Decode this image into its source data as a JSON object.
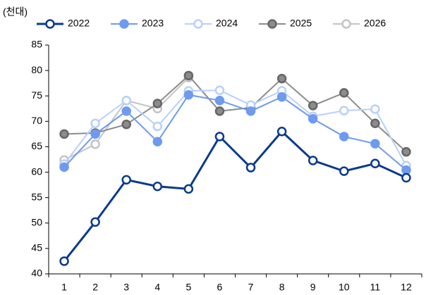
{
  "chart_data": {
    "type": "line",
    "unit_label": "(천대)",
    "categories": [
      "1",
      "2",
      "3",
      "4",
      "5",
      "6",
      "7",
      "8",
      "9",
      "10",
      "11",
      "12"
    ],
    "ylim": [
      40,
      85
    ],
    "yticks": [
      40,
      45,
      50,
      55,
      60,
      65,
      70,
      75,
      80,
      85
    ],
    "series": [
      {
        "name": "2022",
        "color": "#0a3a8c",
        "marker": "open",
        "values": [
          42.5,
          50.2,
          58.5,
          57.2,
          56.7,
          67.0,
          60.9,
          68.0,
          62.3,
          60.2,
          61.7,
          58.9
        ]
      },
      {
        "name": "2023",
        "color": "#6e9af0",
        "marker": "filled",
        "values": [
          61.0,
          67.5,
          72.0,
          66.0,
          75.2,
          74.1,
          72.0,
          74.8,
          70.5,
          67.0,
          65.6,
          60.4
        ]
      },
      {
        "name": "2024",
        "color": "#b8d0fb",
        "marker": "open",
        "values": [
          61.6,
          69.6,
          74.1,
          69.0,
          76.0,
          76.1,
          73.2,
          76.0,
          71.0,
          72.1,
          72.4,
          61.3
        ]
      },
      {
        "name": "2025",
        "color": "#8c8c8c",
        "marker": "filled",
        "values": [
          67.5,
          67.7,
          69.4,
          73.5,
          79.0,
          72.0,
          72.7,
          78.4,
          73.1,
          75.6,
          69.6,
          64.0
        ]
      },
      {
        "name": "2026",
        "color": "#c4c4c4",
        "marker": "open",
        "values": [
          62.4,
          65.5,
          74.1,
          72.5,
          78.6,
          null,
          null,
          null,
          null,
          null,
          null,
          null
        ]
      }
    ]
  }
}
